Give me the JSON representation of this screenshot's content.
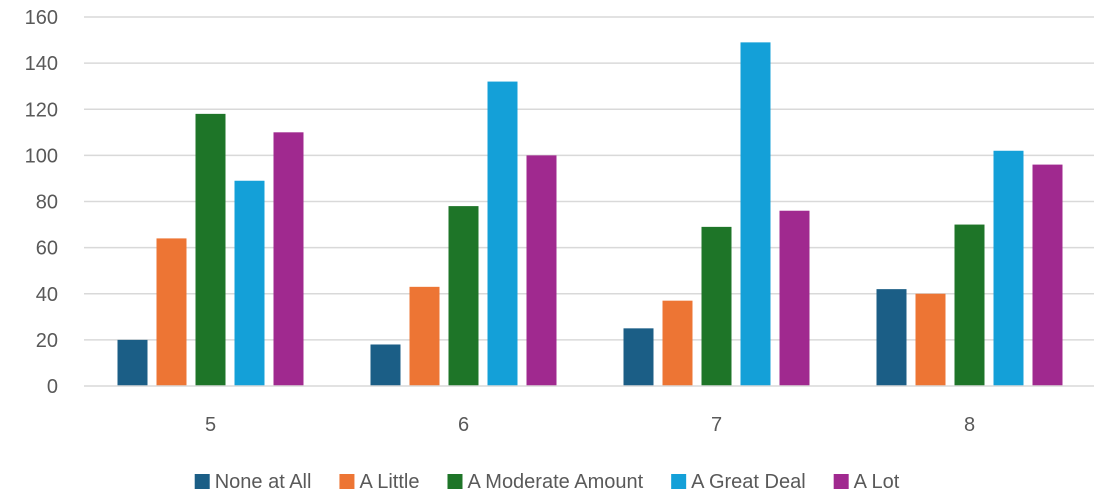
{
  "chart_data": {
    "type": "bar",
    "title": "",
    "xlabel": "",
    "ylabel": "",
    "categories": [
      "5",
      "6",
      "7",
      "8"
    ],
    "ylim": [
      0,
      160
    ],
    "yticks": [
      0,
      20,
      40,
      60,
      80,
      100,
      120,
      140,
      160
    ],
    "grid": true,
    "legend_position": "bottom",
    "series": [
      {
        "name": "None at All",
        "color": "#1b5e86",
        "values": [
          20,
          18,
          25,
          42
        ]
      },
      {
        "name": "A Little",
        "color": "#ed7534",
        "values": [
          64,
          43,
          37,
          40
        ]
      },
      {
        "name": "A Moderate Amount",
        "color": "#1e7528",
        "values": [
          118,
          78,
          69,
          70
        ]
      },
      {
        "name": "A Great Deal",
        "color": "#14a0d8",
        "values": [
          89,
          132,
          149,
          102
        ]
      },
      {
        "name": "A Lot",
        "color": "#a0298f",
        "values": [
          110,
          100,
          76,
          96
        ]
      }
    ]
  }
}
